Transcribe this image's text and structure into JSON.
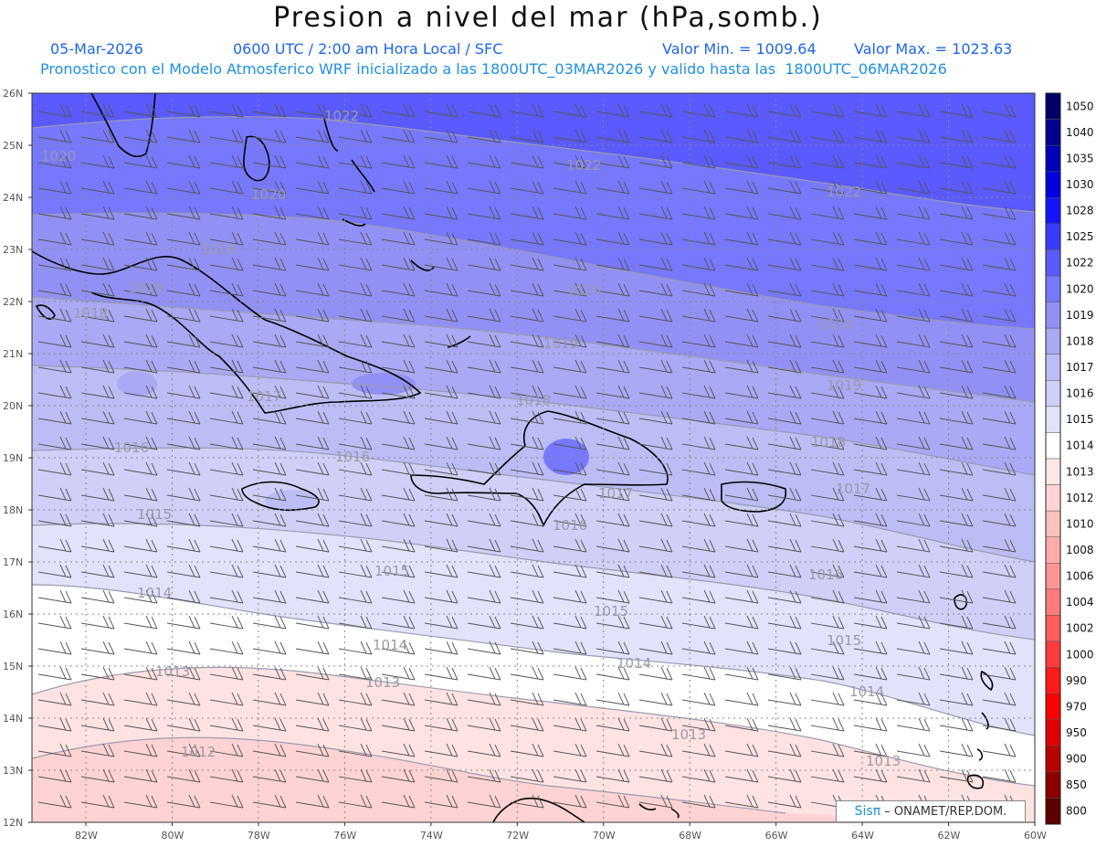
{
  "header": {
    "title": "Presion a nivel del mar (hPa,somb.)",
    "date": "05-Mar-2026",
    "time": "0600 UTC / 2:00 am Hora Local / SFC",
    "min_label": "Valor Min. = 1009.64",
    "max_label": "Valor Max. = 1023.63",
    "forecast_line": "Pronostico con el Modelo Atmosferico WRF inicializado a las 1800UTC_03MAR2026 y valido hasta las  1800UTC_06MAR2026"
  },
  "map": {
    "lat_labels": [
      "26N",
      "25N",
      "24N",
      "23N",
      "22N",
      "21N",
      "20N",
      "19N",
      "18N",
      "17N",
      "16N",
      "15N",
      "14N",
      "13N",
      "12N"
    ],
    "lon_labels": [
      "82W",
      "80W",
      "78W",
      "76W",
      "74W",
      "72W",
      "70W",
      "68W",
      "66W",
      "64W",
      "62W",
      "60W"
    ],
    "isobar_labels": [
      {
        "text": "1022"
      },
      {
        "text": "1022"
      },
      {
        "text": "1022"
      },
      {
        "text": "1020"
      },
      {
        "text": "1020"
      },
      {
        "text": "1020"
      },
      {
        "text": "1020"
      },
      {
        "text": "1019"
      },
      {
        "text": "1019"
      },
      {
        "text": "1019"
      },
      {
        "text": "1019"
      },
      {
        "text": "1018"
      },
      {
        "text": "1018"
      },
      {
        "text": "1018"
      },
      {
        "text": "1017"
      },
      {
        "text": "1017"
      },
      {
        "text": "1017"
      },
      {
        "text": "1016"
      },
      {
        "text": "1016"
      },
      {
        "text": "1016"
      },
      {
        "text": "1016"
      },
      {
        "text": "1015"
      },
      {
        "text": "1015"
      },
      {
        "text": "1015"
      },
      {
        "text": "1015"
      },
      {
        "text": "1014"
      },
      {
        "text": "1014"
      },
      {
        "text": "1014"
      },
      {
        "text": "1014"
      },
      {
        "text": "1013"
      },
      {
        "text": "1013"
      },
      {
        "text": "1013"
      },
      {
        "text": "1013"
      },
      {
        "text": "1012"
      }
    ]
  },
  "colorbar": {
    "levels": [
      {
        "label": "1050",
        "color": "#000066"
      },
      {
        "label": "1040",
        "color": "#00008f"
      },
      {
        "label": "1035",
        "color": "#0000b8"
      },
      {
        "label": "1030",
        "color": "#0000e0"
      },
      {
        "label": "1028",
        "color": "#1414ff"
      },
      {
        "label": "1025",
        "color": "#3a3aff"
      },
      {
        "label": "1022",
        "color": "#5a5aff"
      },
      {
        "label": "1020",
        "color": "#7878ff"
      },
      {
        "label": "1019",
        "color": "#9191f5"
      },
      {
        "label": "1018",
        "color": "#a9a9f5"
      },
      {
        "label": "1017",
        "color": "#bdbdf5"
      },
      {
        "label": "1016",
        "color": "#cfcff7"
      },
      {
        "label": "1015",
        "color": "#e2e2fa"
      },
      {
        "label": "1014",
        "color": "#ffffff"
      },
      {
        "label": "1013",
        "color": "#ffe6e6"
      },
      {
        "label": "1012",
        "color": "#ffd4d4"
      },
      {
        "label": "1010",
        "color": "#ffc0c0"
      },
      {
        "label": "1008",
        "color": "#ffabab"
      },
      {
        "label": "1006",
        "color": "#ff9494"
      },
      {
        "label": "1004",
        "color": "#ff7a7a"
      },
      {
        "label": "1002",
        "color": "#ff5c5c"
      },
      {
        "label": "1000",
        "color": "#ff3c3c"
      },
      {
        "label": "990",
        "color": "#ff1a1a"
      },
      {
        "label": "970",
        "color": "#ff0000"
      },
      {
        "label": "950",
        "color": "#e00000"
      },
      {
        "label": "900",
        "color": "#b80000"
      },
      {
        "label": "850",
        "color": "#8c0000"
      },
      {
        "label": "800",
        "color": "#5c0000"
      }
    ]
  },
  "credit": {
    "logo": "Sisπ",
    "text": "– ONAMET/REP.DOM."
  }
}
